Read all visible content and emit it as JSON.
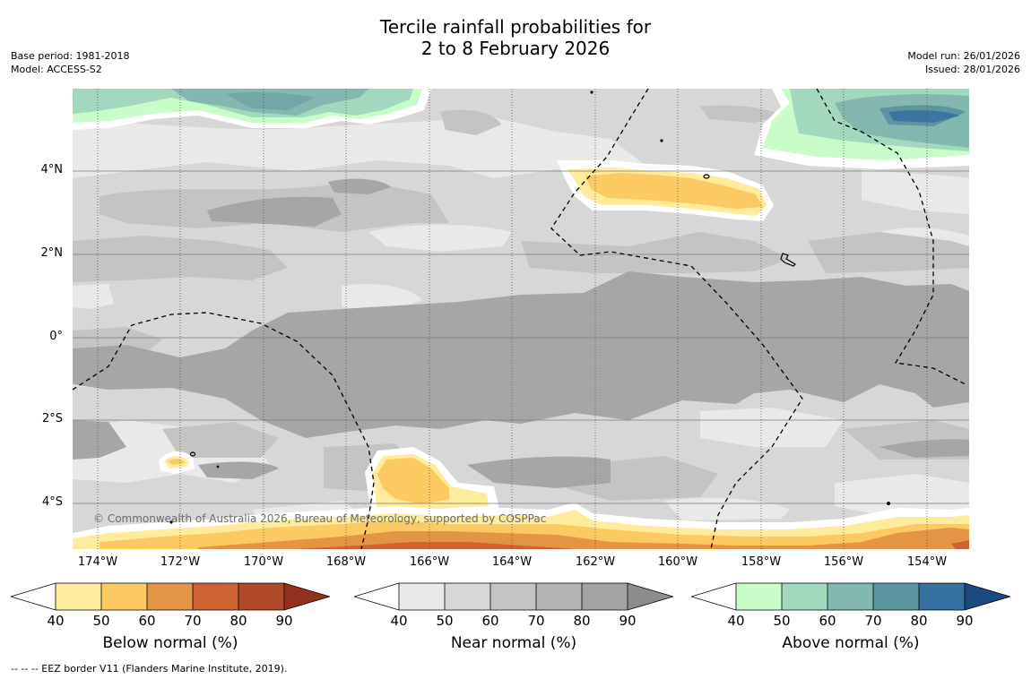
{
  "title_line1": "Tercile rainfall probabilities for",
  "title_line2": "2 to 8 February 2026",
  "base_period": "Base period: 1981-2018",
  "model": "Model: ACCESS-S2",
  "model_run": "Model run: 26/01/2026",
  "issued": "Issued: 28/01/2026",
  "latitude_labels": [
    "4°N",
    "2°N",
    "0°",
    "2°S",
    "4°S"
  ],
  "longitude_labels": [
    "174°W",
    "172°W",
    "170°W",
    "168°W",
    "166°W",
    "164°W",
    "162°W",
    "160°W",
    "158°W",
    "156°W",
    "154°W"
  ],
  "copyright": "© Commonwealth of Australia 2026, Bureau of Meteorology, supported by COSPPac",
  "colorbars": [
    {
      "label": "Below normal (%)",
      "ticks": [
        "40",
        "50",
        "60",
        "70",
        "80",
        "90"
      ],
      "colors": [
        "#ffffff",
        "#ffeb9c",
        "#fdc962",
        "#e39445",
        "#cd6232",
        "#b04928",
        "#923120"
      ]
    },
    {
      "label": "Near normal (%)",
      "ticks": [
        "40",
        "50",
        "60",
        "70",
        "80",
        "90"
      ],
      "colors": [
        "#ffffff",
        "#e9e9e9",
        "#d7d7d7",
        "#c4c4c4",
        "#b3b3b3",
        "#a3a3a3",
        "#8c8c8c"
      ]
    },
    {
      "label": "Above normal (%)",
      "ticks": [
        "40",
        "50",
        "60",
        "70",
        "80",
        "90"
      ],
      "colors": [
        "#ffffff",
        "#c8fcc8",
        "#a2d8be",
        "#82b8b0",
        "#5b96a0",
        "#3470a0",
        "#1b4a80"
      ]
    }
  ],
  "footnote": "-- -- -- EEZ border V11 (Flanders Marine Institute, 2019)."
}
